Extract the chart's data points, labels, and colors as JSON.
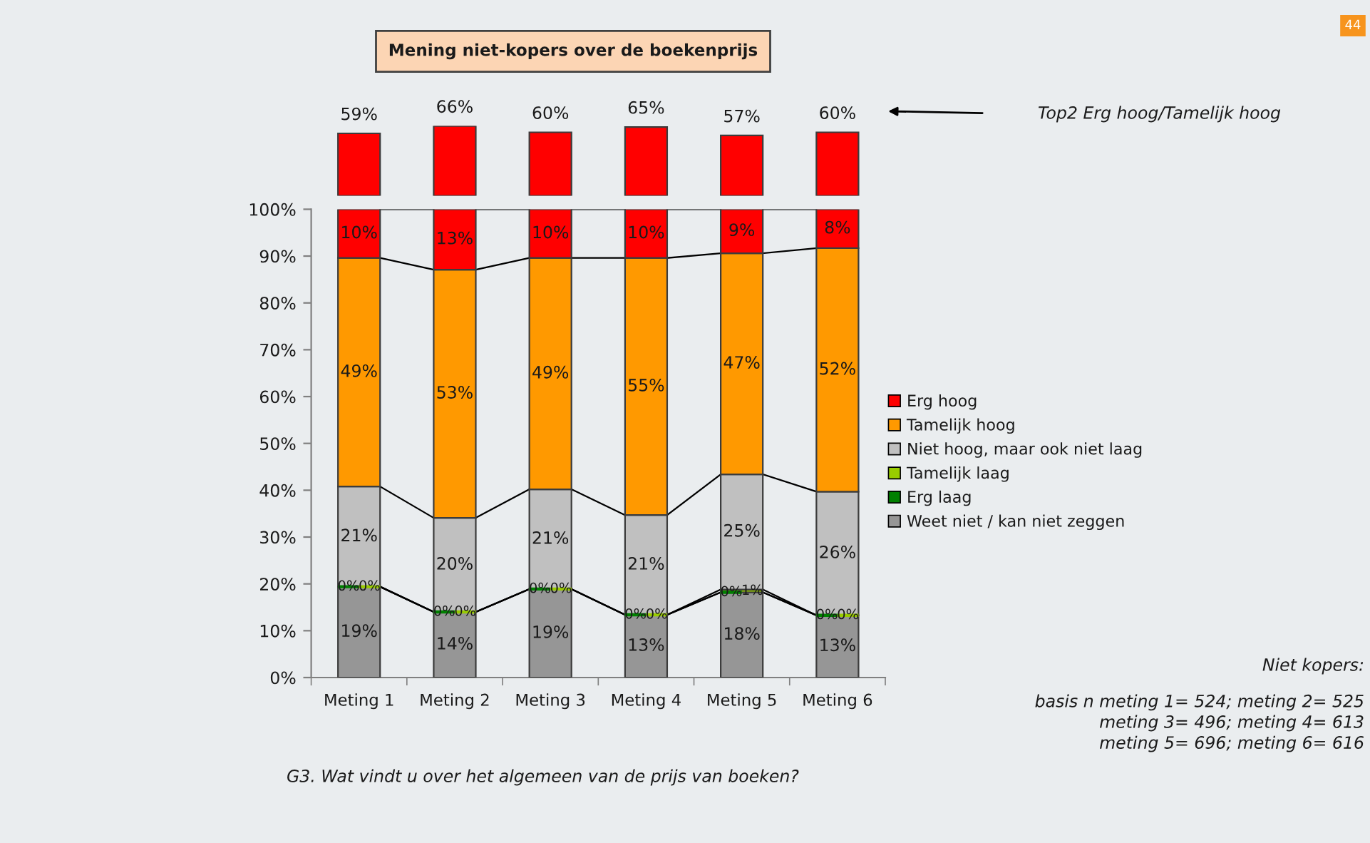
{
  "chart_data": [
    {
      "type": "bar",
      "title": "Mening niet-kopers over de boekenprijs",
      "categories": [
        null,
        null,
        null,
        null,
        null,
        null
      ],
      "values": [
        59,
        66,
        60,
        65,
        57,
        60
      ],
      "value_labels": [
        "59%",
        "66%",
        "60%",
        "65%",
        "57%",
        "60%"
      ],
      "color": "#ff0000",
      "tick_labels": false,
      "annotations": [
        "Top2 Erg hoog/Tamelijk hoog"
      ]
    },
    {
      "type": "bar",
      "stacked": true,
      "categories": [
        "Meting 1",
        "Meting 2",
        "Meting 3",
        "Meting 4",
        "Meting 5",
        "Meting 6"
      ],
      "series": [
        {
          "name": "Weet niet / kan niet zeggen",
          "color": "#969696",
          "values": [
            19.4,
            14.0,
            18.9,
            13.4,
            18.2,
            13.3
          ],
          "value_labels": [
            "19%",
            "14%",
            "19%",
            "13%",
            "18%",
            "13%"
          ]
        },
        {
          "name": "Erg laag",
          "color": "#008000",
          "values": [
            0,
            0,
            0,
            0,
            0,
            0
          ],
          "value_labels": [
            "0%",
            "0%",
            "0%",
            "0%",
            "0%",
            "0%"
          ]
        },
        {
          "name": "Tamelijk laag",
          "color": "#99cc00",
          "values": [
            0,
            0,
            0,
            0,
            0.6,
            0
          ],
          "value_labels": [
            "0%",
            "0%",
            "0%",
            "0%",
            "1%",
            "0%"
          ]
        },
        {
          "name": "Niet hoog, maar ook niet laag",
          "color": "#c0c0c0",
          "values": [
            21.4,
            20.1,
            21.3,
            21.3,
            24.6,
            26.4
          ],
          "value_labels": [
            "21%",
            "20%",
            "21%",
            "21%",
            "25%",
            "26%"
          ]
        },
        {
          "name": "Tamelijk hoog",
          "color": "#ff9900",
          "values": [
            48.8,
            53.0,
            49.4,
            54.9,
            47.2,
            52.0
          ],
          "value_labels": [
            "49%",
            "53%",
            "49%",
            "55%",
            "47%",
            "52%"
          ]
        },
        {
          "name": "Erg hoog",
          "color": "#ff0000",
          "values": [
            10.4,
            12.9,
            10.4,
            10.4,
            9.4,
            8.3
          ],
          "value_labels": [
            "10%",
            "13%",
            "10%",
            "10%",
            "9%",
            "8%"
          ]
        }
      ],
      "ylim": [
        0,
        100
      ],
      "yticks": [
        {
          "value": 0,
          "label": "0%"
        },
        {
          "value": 10,
          "label": "10%"
        },
        {
          "value": 20,
          "label": "20%"
        },
        {
          "value": 30,
          "label": "30%"
        },
        {
          "value": 40,
          "label": "40%"
        },
        {
          "value": 50,
          "label": "50%"
        },
        {
          "value": 60,
          "label": "60%"
        },
        {
          "value": 70,
          "label": "70%"
        },
        {
          "value": 80,
          "label": "80%"
        },
        {
          "value": 90,
          "label": "90%"
        },
        {
          "value": 100,
          "label": "100%"
        }
      ],
      "legend": "right",
      "annotations": [
        "Niet kopers:",
        "basis n meting 1= 524; meting 2= 525\nmeting 3= 496; meting 4= 613\nmeting 5= 696; meting 6= 616",
        "G3. Wat vindt u over het algemeen van de prijs van boeken?",
        "44"
      ]
    }
  ]
}
